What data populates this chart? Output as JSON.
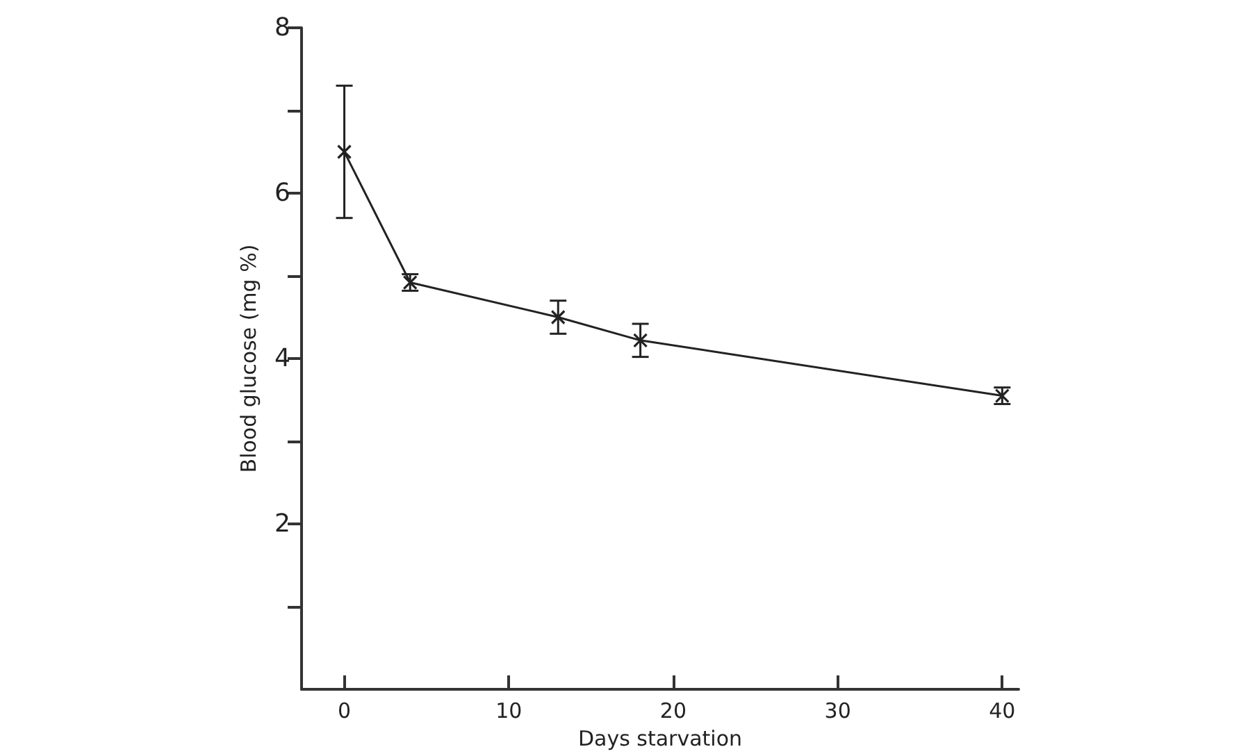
{
  "chart_data": {
    "type": "line",
    "xlabel": "Days starvation",
    "ylabel": "Blood glucose (mg %)",
    "x": [
      0,
      4,
      13,
      18,
      40
    ],
    "series": [
      {
        "color": "#222222",
        "values": [
          6.5,
          4.92,
          4.5,
          4.22,
          3.55
        ],
        "errors": [
          [
            5.7,
            7.3
          ],
          0.1,
          0.2,
          0.2,
          0.1
        ]
      }
    ],
    "xlim": [
      -2.6,
      41
    ],
    "xticks": [
      0,
      10,
      20,
      30,
      40
    ],
    "ylim": [
      0,
      8
    ],
    "yticks": [
      {
        "value": 1,
        "label": null
      },
      2,
      {
        "value": 3,
        "label": null
      },
      4,
      {
        "value": 5,
        "label": null
      },
      6,
      {
        "value": 7,
        "label": null
      },
      8
    ],
    "grid": false,
    "marker": "cross",
    "line_style": "solid"
  }
}
